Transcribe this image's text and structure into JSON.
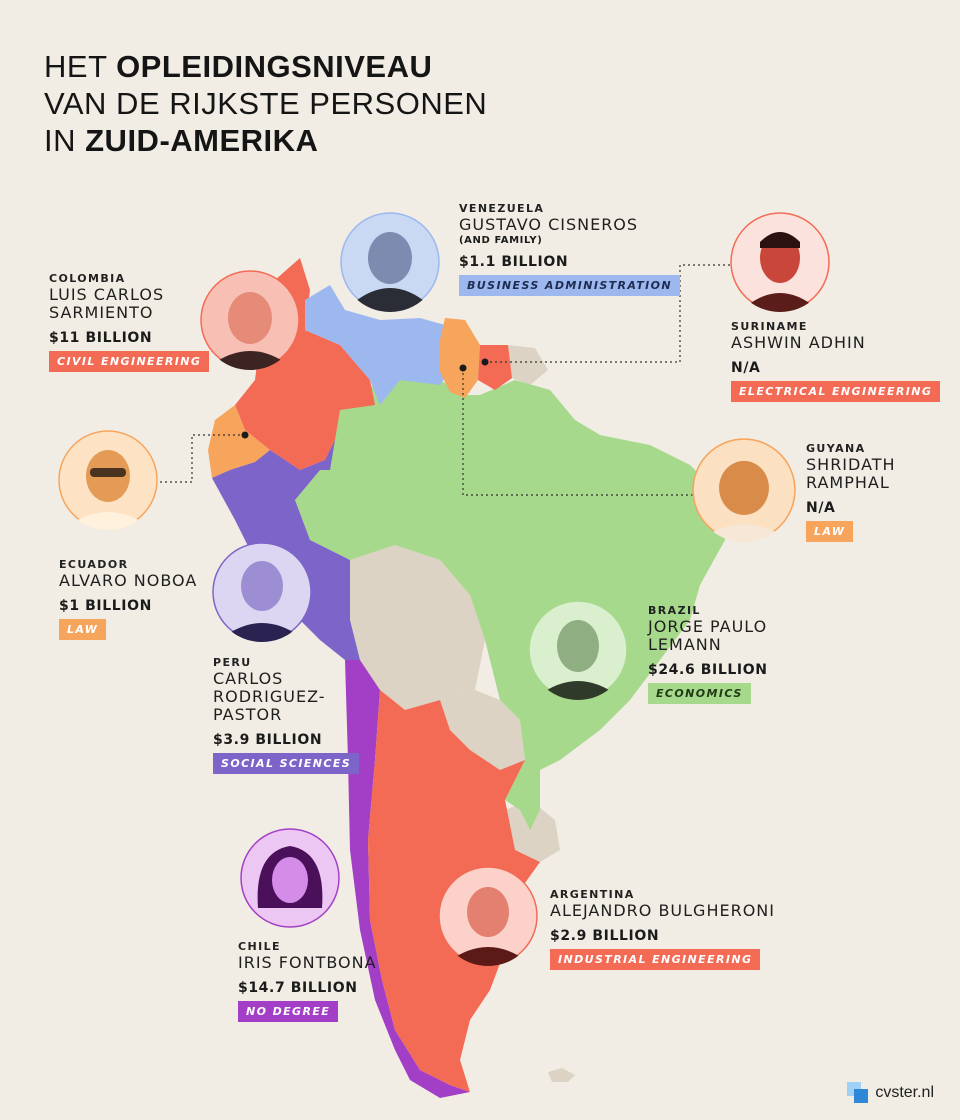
{
  "title": {
    "line1a": "HET ",
    "line1b": "OPLEIDINGSNIVEAU",
    "line2": "VAN DE RIJKSTE PERSONEN",
    "line3a": "IN ",
    "line3b": "ZUID-AMERIKA"
  },
  "colors": {
    "background": "#f1ede4",
    "colombia": "#f36a55",
    "venezuela": "#9cb8ef",
    "suriname": "#f36a55",
    "guyana": "#f7a45c",
    "ecuador": "#f7a45c",
    "peru": "#7d64c8",
    "brazil": "#a7d98c",
    "chile": "#a33ec6",
    "argentina": "#f36a55",
    "other": "#dcd3c4"
  },
  "people": [
    {
      "country": "VENEZUELA",
      "name": "GUSTAVO CISNEROS",
      "sub": "(AND FAMILY)",
      "wealth": "$1.1 BILLION",
      "field": "BUSINESS ADMINISTRATION",
      "color": "#9cb8ef"
    },
    {
      "country": "COLOMBIA",
      "name": "LUIS CARLOS\nSARMIENTO",
      "sub": "",
      "wealth": "$11 BILLION",
      "field": "CIVIL ENGINEERING",
      "color": "#f36a55"
    },
    {
      "country": "SURINAME",
      "name": "ASHWIN ADHIN",
      "sub": "",
      "wealth": "N/A",
      "field": "ELECTRICAL ENGINEERING",
      "color": "#f36a55"
    },
    {
      "country": "GUYANA",
      "name": "SHRIDATH\nRAMPHAL",
      "sub": "",
      "wealth": "N/A",
      "field": "LAW",
      "color": "#f7a45c"
    },
    {
      "country": "ECUADOR",
      "name": "ALVARO NOBOA",
      "sub": "",
      "wealth": "$1 BILLION",
      "field": "LAW",
      "color": "#f7a45c"
    },
    {
      "country": "BRAZIL",
      "name": "JORGE PAULO\nLEMANN",
      "sub": "",
      "wealth": "$24.6 BILLION",
      "field": "ECONOMICS",
      "color": "#a7d98c"
    },
    {
      "country": "PERU",
      "name": "CARLOS\nRODRIGUEZ-\nPASTOR",
      "sub": "",
      "wealth": "$3.9 BILLION",
      "field": "SOCIAL SCIENCES",
      "color": "#7d64c8"
    },
    {
      "country": "CHILE",
      "name": "IRIS FONTBONA",
      "sub": "",
      "wealth": "$14.7 BILLION",
      "field": "NO DEGREE",
      "color": "#a33ec6"
    },
    {
      "country": "ARGENTINA",
      "name": "ALEJANDRO BULGHERONI",
      "sub": "",
      "wealth": "$2.9 BILLION",
      "field": "INDUSTRIAL ENGINEERING",
      "color": "#f36a55"
    }
  ],
  "logo": {
    "text": "cvster.nl",
    "icon": "cvster-logo-icon"
  }
}
